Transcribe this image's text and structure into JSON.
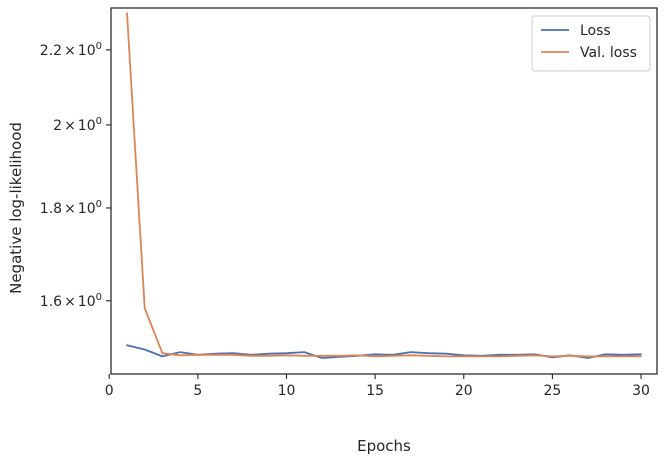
{
  "chart_data": {
    "type": "line",
    "xlabel": "Epochs",
    "ylabel": "Negative log-likelihood",
    "xlim": [
      0.1,
      30.9
    ],
    "ylim": [
      1.458,
      2.32
    ],
    "yscale": "log",
    "grid": false,
    "legend_position": "top-right",
    "x_ticks": [
      {
        "value": 0,
        "label": "0"
      },
      {
        "value": 5,
        "label": "5"
      },
      {
        "value": 10,
        "label": "10"
      },
      {
        "value": 15,
        "label": "15"
      },
      {
        "value": 20,
        "label": "20"
      },
      {
        "value": 25,
        "label": "25"
      },
      {
        "value": 30,
        "label": "30"
      }
    ],
    "y_ticks": [
      {
        "value": 1.6,
        "base": "1.6",
        "mult": "×",
        "pow": "10",
        "exp": "0"
      },
      {
        "value": 1.8,
        "base": "1.8",
        "mult": "×",
        "pow": "10",
        "exp": "0"
      },
      {
        "value": 2.0,
        "base": "2",
        "mult": "×",
        "pow": "10",
        "exp": "0"
      },
      {
        "value": 2.2,
        "base": "2.2",
        "mult": "×",
        "pow": "10",
        "exp": "0"
      }
    ],
    "x": [
      1,
      2,
      3,
      4,
      5,
      6,
      7,
      8,
      9,
      10,
      11,
      12,
      13,
      14,
      15,
      16,
      17,
      18,
      19,
      20,
      21,
      22,
      23,
      24,
      25,
      26,
      27,
      28,
      29,
      30
    ],
    "series": [
      {
        "name": "Loss",
        "color": "#4c72b0",
        "values": [
          1.512,
          1.504,
          1.491,
          1.499,
          1.494,
          1.496,
          1.497,
          1.494,
          1.496,
          1.497,
          1.499,
          1.488,
          1.49,
          1.492,
          1.495,
          1.494,
          1.499,
          1.497,
          1.496,
          1.493,
          1.492,
          1.494,
          1.494,
          1.495,
          1.489,
          1.493,
          1.488,
          1.495,
          1.494,
          1.495
        ]
      },
      {
        "name": "Val. loss",
        "color": "#dd8452",
        "values": [
          2.305,
          1.585,
          1.497,
          1.493,
          1.494,
          1.494,
          1.494,
          1.492,
          1.492,
          1.493,
          1.492,
          1.492,
          1.492,
          1.493,
          1.491,
          1.492,
          1.493,
          1.492,
          1.491,
          1.491,
          1.491,
          1.491,
          1.492,
          1.493,
          1.491,
          1.492,
          1.491,
          1.491,
          1.491,
          1.491
        ]
      }
    ]
  }
}
